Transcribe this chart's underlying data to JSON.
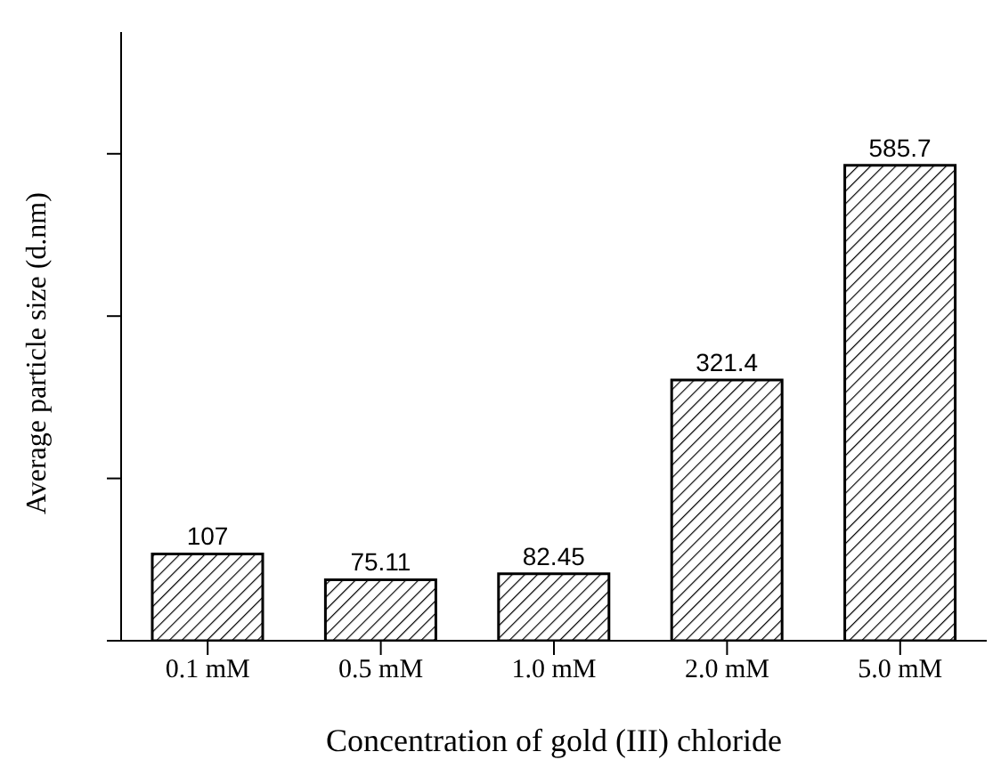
{
  "chart_data": {
    "type": "bar",
    "xlabel": "Concentration of gold (III) chloride",
    "ylabel": "Average particle size (d.nm)",
    "categories": [
      "0.1 mM",
      "0.5 mM",
      "1.0 mM",
      "2.0 mM",
      "5.0 mM"
    ],
    "values": [
      107,
      75.11,
      82.45,
      321.4,
      585.7
    ],
    "color": "#000000",
    "ylim": [
      0,
      750
    ],
    "yticks": [
      {
        "value": 0,
        "label": null
      },
      {
        "value": 200,
        "label": null
      },
      {
        "value": 400,
        "label": null
      },
      {
        "value": 600,
        "label": null
      }
    ],
    "tick_labels": "x",
    "data_labels": true,
    "grid": false,
    "legend": false
  }
}
